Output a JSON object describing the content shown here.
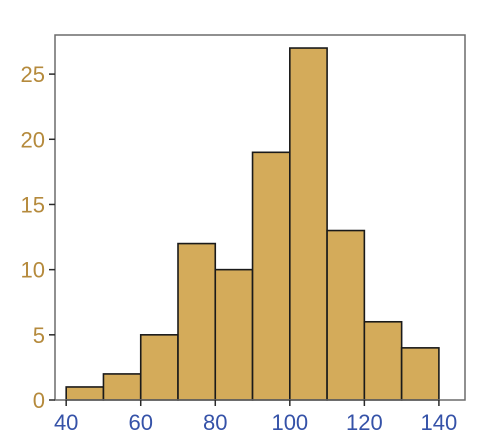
{
  "chart_data": {
    "type": "bar",
    "subtype": "histogram",
    "title": "",
    "xlabel": "",
    "ylabel": "",
    "bin_edges": [
      40,
      50,
      60,
      70,
      80,
      90,
      100,
      110,
      120,
      130,
      140
    ],
    "counts": [
      1,
      2,
      5,
      12,
      10,
      19,
      27,
      13,
      6,
      4
    ],
    "xlim": [
      37,
      147
    ],
    "ylim": [
      0,
      28
    ],
    "xticks": [
      40,
      60,
      80,
      100,
      120,
      140
    ],
    "yticks": [
      0,
      5,
      10,
      15,
      20,
      25
    ],
    "grid": false,
    "legend": "none",
    "colors": {
      "bar_fill": "#d4ab5a",
      "bar_edge": "#1a1a1a",
      "x_tick_labels": "#3552a8",
      "y_tick_labels": "#b58a3c",
      "frame": "#6b6b6b"
    }
  }
}
